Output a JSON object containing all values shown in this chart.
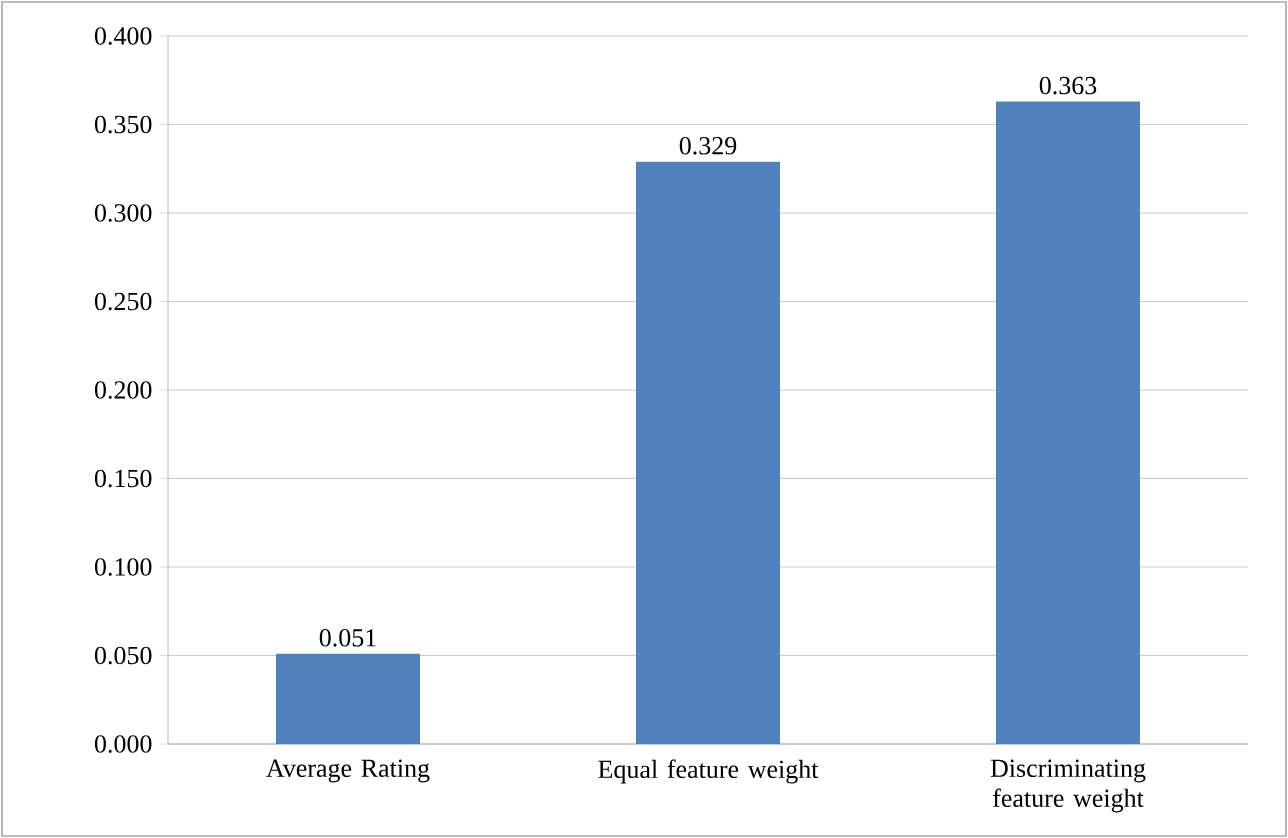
{
  "chart_data": {
    "type": "bar",
    "categories": [
      "Average Rating",
      "Equal feature weight",
      "Discriminating feature weight"
    ],
    "values": [
      0.051,
      0.329,
      0.363
    ],
    "color": "#4f81bd",
    "ylim": [
      0,
      0.4
    ],
    "yticks": [
      {
        "value": 0,
        "label": "0.000"
      },
      {
        "value": 0.05,
        "label": "0.050"
      },
      {
        "value": 0.1,
        "label": "0.100"
      },
      {
        "value": 0.15,
        "label": "0.150"
      },
      {
        "value": 0.2,
        "label": "0.200"
      },
      {
        "value": 0.25,
        "label": "0.250"
      },
      {
        "value": 0.3,
        "label": "0.300"
      },
      {
        "value": 0.35,
        "label": "0.350"
      },
      {
        "value": 0.4,
        "label": "0.400"
      }
    ],
    "grid": "y",
    "data_labels": true
  }
}
